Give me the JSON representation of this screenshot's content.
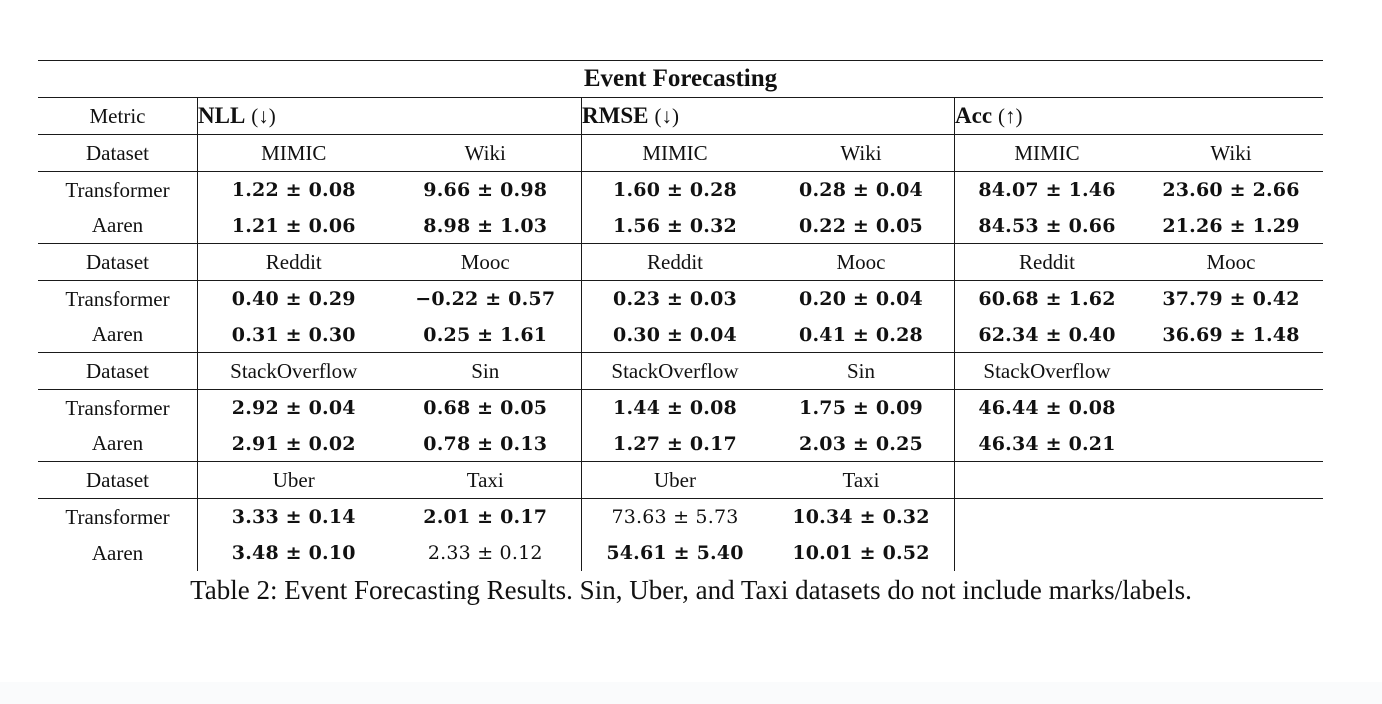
{
  "title": "Event Forecasting",
  "caption": "Table 2: Event Forecasting Results. Sin, Uber, and Taxi datasets do not include marks/labels.",
  "labels": {
    "metric": "Metric",
    "dataset": "Dataset"
  },
  "sections": [
    {
      "name": "NLL",
      "dir": "(↓)"
    },
    {
      "name": "RMSE",
      "dir": "(↓)"
    },
    {
      "name": "Acc",
      "dir": "(↑)"
    }
  ],
  "blocks": [
    {
      "ds": [
        "MIMIC",
        "Wiki",
        "MIMIC",
        "Wiki",
        "MIMIC",
        "Wiki"
      ],
      "rows": [
        {
          "model": "Transformer",
          "v": [
            "1.22 ± 0.08",
            "9.66 ± 0.98",
            "1.60 ± 0.28",
            "0.28 ± 0.04",
            "84.07 ± 1.46",
            "23.60 ± 2.66"
          ]
        },
        {
          "model": "Aaren",
          "v": [
            "1.21 ± 0.06",
            "8.98 ± 1.03",
            "1.56 ± 0.32",
            "0.22 ± 0.05",
            "84.53 ± 0.66",
            "21.26 ± 1.29"
          ]
        }
      ]
    },
    {
      "ds": [
        "Reddit",
        "Mooc",
        "Reddit",
        "Mooc",
        "Reddit",
        "Mooc"
      ],
      "rows": [
        {
          "model": "Transformer",
          "v": [
            "0.40 ± 0.29",
            "−0.22 ± 0.57",
            "0.23 ± 0.03",
            "0.20 ± 0.04",
            "60.68 ± 1.62",
            "37.79 ± 0.42"
          ]
        },
        {
          "model": "Aaren",
          "v": [
            "0.31 ± 0.30",
            "0.25 ± 1.61",
            "0.30 ± 0.04",
            "0.41 ± 0.28",
            "62.34 ± 0.40",
            "36.69 ± 1.48"
          ]
        }
      ]
    },
    {
      "ds": [
        "StackOverflow",
        "Sin",
        "StackOverflow",
        "Sin",
        "StackOverflow",
        ""
      ],
      "rows": [
        {
          "model": "Transformer",
          "v": [
            "2.92 ± 0.04",
            "0.68 ± 0.05",
            "1.44 ± 0.08",
            "1.75 ± 0.09",
            "46.44 ± 0.08",
            ""
          ]
        },
        {
          "model": "Aaren",
          "v": [
            "2.91 ± 0.02",
            "0.78 ± 0.13",
            "1.27 ± 0.17",
            "2.03 ± 0.25",
            "46.34 ± 0.21",
            ""
          ]
        }
      ]
    },
    {
      "ds": [
        "Uber",
        "Taxi",
        "Uber",
        "Taxi",
        "",
        ""
      ],
      "rows": [
        {
          "model": "Transformer",
          "v": [
            "3.33 ± 0.14",
            "2.01 ± 0.17",
            "73.63 ± 5.73",
            "10.34 ± 0.32",
            "",
            ""
          ]
        },
        {
          "model": "Aaren",
          "v": [
            "3.48 ± 0.10",
            "2.33 ± 0.12",
            "54.61 ± 5.40",
            "10.01 ± 0.52",
            "",
            ""
          ]
        }
      ]
    }
  ],
  "style_notes": {
    "regular_weight_cells": [
      "blocks.3.rows.0.v.2",
      "blocks.3.rows.1.v.1"
    ],
    "text_color": "#111111",
    "rule_color": "#1a1a1a",
    "background": "#ffffff"
  }
}
